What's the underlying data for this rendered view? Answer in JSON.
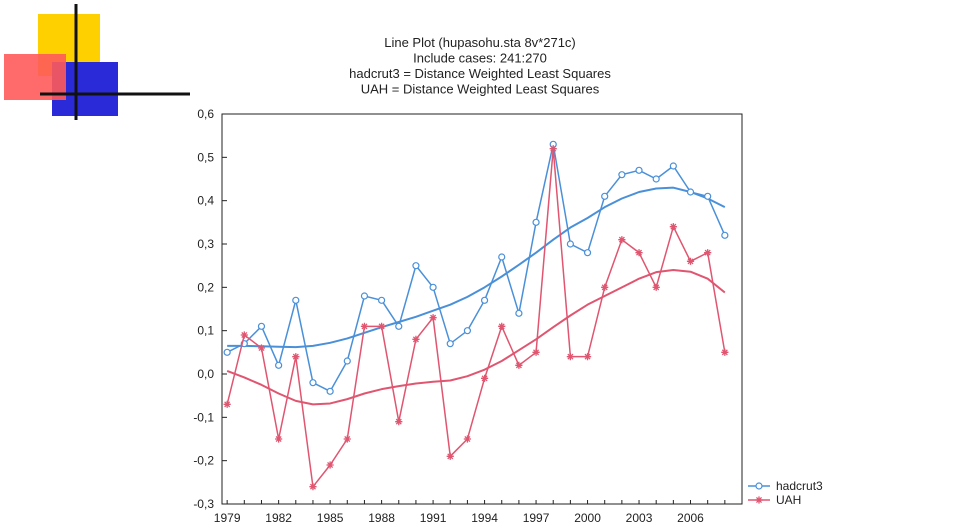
{
  "chart_data": {
    "type": "line",
    "title_lines": [
      "Line Plot (hupasohu.sta 8v*271c)",
      "Include cases: 241:270",
      "hadcrut3 = Distance Weighted Least Squares",
      "UAH = Distance Weighted Least Squares"
    ],
    "x": [
      1979,
      1980,
      1981,
      1982,
      1983,
      1984,
      1985,
      1986,
      1987,
      1988,
      1989,
      1990,
      1991,
      1992,
      1993,
      1994,
      1995,
      1996,
      1997,
      1998,
      1999,
      2000,
      2001,
      2002,
      2003,
      2004,
      2005,
      2006,
      2007,
      2008
    ],
    "x_ticks": [
      "1979",
      "1982",
      "1985",
      "1988",
      "1991",
      "1994",
      "1997",
      "2000",
      "2003",
      "2006"
    ],
    "y_ticks": [
      "-0,3",
      "-0,2",
      "-0,1",
      "0,0",
      "0,1",
      "0,2",
      "0,3",
      "0,4",
      "0,5",
      "0,6"
    ],
    "xlim": [
      1978.7,
      2009.0
    ],
    "ylim": [
      -0.3,
      0.6
    ],
    "grid": false,
    "legend_position": "bottom-right",
    "series": [
      {
        "name": "hadcrut3",
        "color": "#4a90d9",
        "marker": "circle",
        "values": [
          0.05,
          0.07,
          0.11,
          0.02,
          0.17,
          -0.02,
          -0.04,
          0.03,
          0.18,
          0.17,
          0.11,
          0.25,
          0.2,
          0.07,
          0.1,
          0.17,
          0.27,
          0.14,
          0.35,
          0.53,
          0.3,
          0.28,
          0.41,
          0.46,
          0.47,
          0.45,
          0.48,
          0.42,
          0.41,
          0.32
        ],
        "smooth": [
          0.065,
          0.065,
          0.064,
          0.063,
          0.062,
          0.065,
          0.072,
          0.082,
          0.095,
          0.108,
          0.12,
          0.132,
          0.146,
          0.16,
          0.178,
          0.2,
          0.225,
          0.252,
          0.28,
          0.31,
          0.338,
          0.36,
          0.385,
          0.405,
          0.42,
          0.428,
          0.43,
          0.42,
          0.405,
          0.385
        ]
      },
      {
        "name": "UAH",
        "color": "#e05570",
        "marker": "star",
        "values": [
          -0.07,
          0.09,
          0.06,
          -0.15,
          0.04,
          -0.26,
          -0.21,
          -0.15,
          0.11,
          0.11,
          -0.11,
          0.08,
          0.13,
          -0.19,
          -0.15,
          -0.01,
          0.11,
          0.02,
          0.05,
          0.52,
          0.04,
          0.04,
          0.2,
          0.31,
          0.28,
          0.2,
          0.34,
          0.26,
          0.28,
          0.05
        ],
        "smooth": [
          0.007,
          -0.008,
          -0.025,
          -0.045,
          -0.062,
          -0.07,
          -0.068,
          -0.058,
          -0.045,
          -0.035,
          -0.028,
          -0.022,
          -0.018,
          -0.015,
          -0.005,
          0.01,
          0.03,
          0.055,
          0.08,
          0.108,
          0.135,
          0.16,
          0.18,
          0.2,
          0.22,
          0.235,
          0.24,
          0.236,
          0.22,
          0.188
        ]
      }
    ]
  }
}
